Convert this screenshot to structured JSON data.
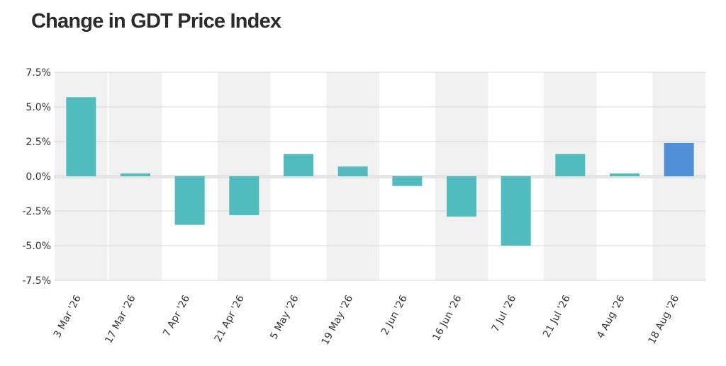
{
  "chart_data": {
    "type": "bar",
    "title": "Change in GDT Price Index",
    "xlabel": "",
    "ylabel": "",
    "categories": [
      "3 Mar '26",
      "17 Mar '26",
      "7 Apr '26",
      "21 Apr '26",
      "5 May '26",
      "19 May '26",
      "2 Jun '26",
      "16 Jun '26",
      "7 Jul '26",
      "21 Jul '26",
      "4 Aug '26",
      "18 Aug '26"
    ],
    "values": [
      5.7,
      0.2,
      -3.5,
      -2.8,
      1.6,
      0.7,
      -0.7,
      -2.9,
      -5.0,
      1.6,
      0.2,
      2.4
    ],
    "ylim": [
      -7.5,
      7.5
    ],
    "yticks": [
      "7.5%",
      "5.0%",
      "2.5%",
      "0.0%",
      "-2.5%",
      "-5.0%",
      "-7.5%"
    ],
    "ytick_values": [
      7.5,
      5.0,
      2.5,
      0.0,
      -2.5,
      -5.0,
      -7.5
    ],
    "grid": true,
    "legend": "none",
    "colors": {
      "bar": "#50bcbd",
      "highlight_bar": "#5090d8",
      "band": "#f1f1f1",
      "zero_line": "#e4e4e4",
      "gridline": "#d8d8d8"
    },
    "highlight_index": 11
  }
}
